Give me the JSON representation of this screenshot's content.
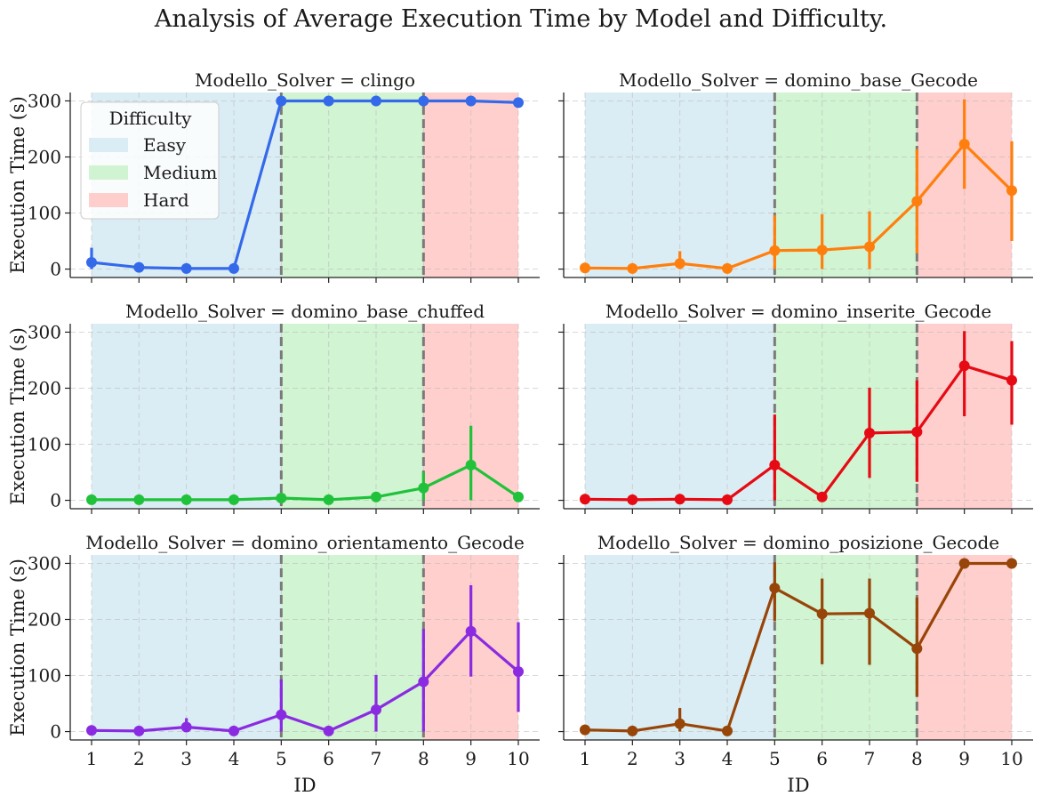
{
  "chart_data": {
    "type": "line",
    "title": "Analysis of Average Execution Time by Model and Difficulty.",
    "xlabel": "ID",
    "ylabel": "Execution Time (s)",
    "x": [
      1,
      2,
      3,
      4,
      5,
      6,
      7,
      8,
      9,
      10
    ],
    "xlim": [
      0.55,
      10.45
    ],
    "ylim": [
      -15,
      315
    ],
    "x_ticks": [
      1,
      2,
      3,
      4,
      5,
      6,
      7,
      8,
      9,
      10
    ],
    "y_ticks": [
      0,
      100,
      200,
      300
    ],
    "grid": true,
    "difficulty_boundaries": [
      5,
      8
    ],
    "difficulty_bands": [
      {
        "name": "Easy",
        "from": 1,
        "to": 5,
        "color": "#cde6f0"
      },
      {
        "name": "Medium",
        "from": 5,
        "to": 8,
        "color": "#bff0c0"
      },
      {
        "name": "Hard",
        "from": 8,
        "to": 10,
        "color": "#fdbcb8"
      }
    ],
    "legend": {
      "title": "Difficulty",
      "placement": "top-left",
      "entries": [
        "Easy",
        "Medium",
        "Hard"
      ]
    },
    "panels": [
      {
        "title": "Modello_Solver = clingo",
        "color": "#3469ea",
        "values": [
          12,
          3,
          1,
          1,
          300,
          300,
          300,
          300,
          300,
          297
        ],
        "error_low": [
          0,
          null,
          null,
          null,
          null,
          null,
          null,
          null,
          null,
          null
        ],
        "error_high": [
          38,
          null,
          null,
          null,
          null,
          null,
          null,
          null,
          null,
          null
        ]
      },
      {
        "title": "Modello_Solver = domino_base_Gecode",
        "color": "#ff7f0e",
        "values": [
          2,
          1,
          10,
          1,
          33,
          34,
          40,
          121,
          223,
          140
        ],
        "error_low": [
          null,
          null,
          0,
          null,
          0,
          0,
          0,
          28,
          143,
          50
        ],
        "error_high": [
          null,
          null,
          32,
          null,
          96,
          98,
          103,
          214,
          303,
          228
        ]
      },
      {
        "title": "Modello_Solver = domino_base_chuffed",
        "color": "#1fc23a",
        "values": [
          1,
          1,
          1,
          1,
          4,
          1,
          6,
          22,
          63,
          6
        ],
        "error_low": [
          null,
          null,
          null,
          null,
          null,
          null,
          null,
          0,
          0,
          null
        ],
        "error_high": [
          null,
          null,
          null,
          null,
          null,
          null,
          null,
          50,
          133,
          null
        ]
      },
      {
        "title": "Modello_Solver = domino_inserite_Gecode",
        "color": "#e60a14",
        "values": [
          2,
          1,
          2,
          1,
          63,
          6,
          120,
          122,
          240,
          214
        ],
        "error_low": [
          null,
          null,
          null,
          null,
          0,
          null,
          40,
          33,
          150,
          135
        ],
        "error_high": [
          null,
          null,
          null,
          null,
          153,
          null,
          201,
          214,
          302,
          284
        ]
      },
      {
        "title": "Modello_Solver = domino_orientamento_Gecode",
        "color": "#8a2be2",
        "values": [
          2,
          1,
          8,
          1,
          30,
          1,
          39,
          89,
          179,
          107
        ],
        "error_low": [
          null,
          null,
          0,
          null,
          0,
          null,
          0,
          0,
          98,
          35
        ],
        "error_high": [
          null,
          null,
          24,
          null,
          93,
          null,
          101,
          183,
          261,
          195
        ]
      },
      {
        "title": "Modello_Solver = domino_posizione_Gecode",
        "color": "#974508",
        "values": [
          3,
          1,
          14,
          1,
          256,
          210,
          211,
          148,
          300,
          300
        ],
        "error_low": [
          null,
          null,
          0,
          null,
          197,
          120,
          119,
          63,
          null,
          null
        ],
        "error_high": [
          null,
          null,
          42,
          null,
          302,
          273,
          273,
          239,
          null,
          null
        ]
      }
    ]
  }
}
